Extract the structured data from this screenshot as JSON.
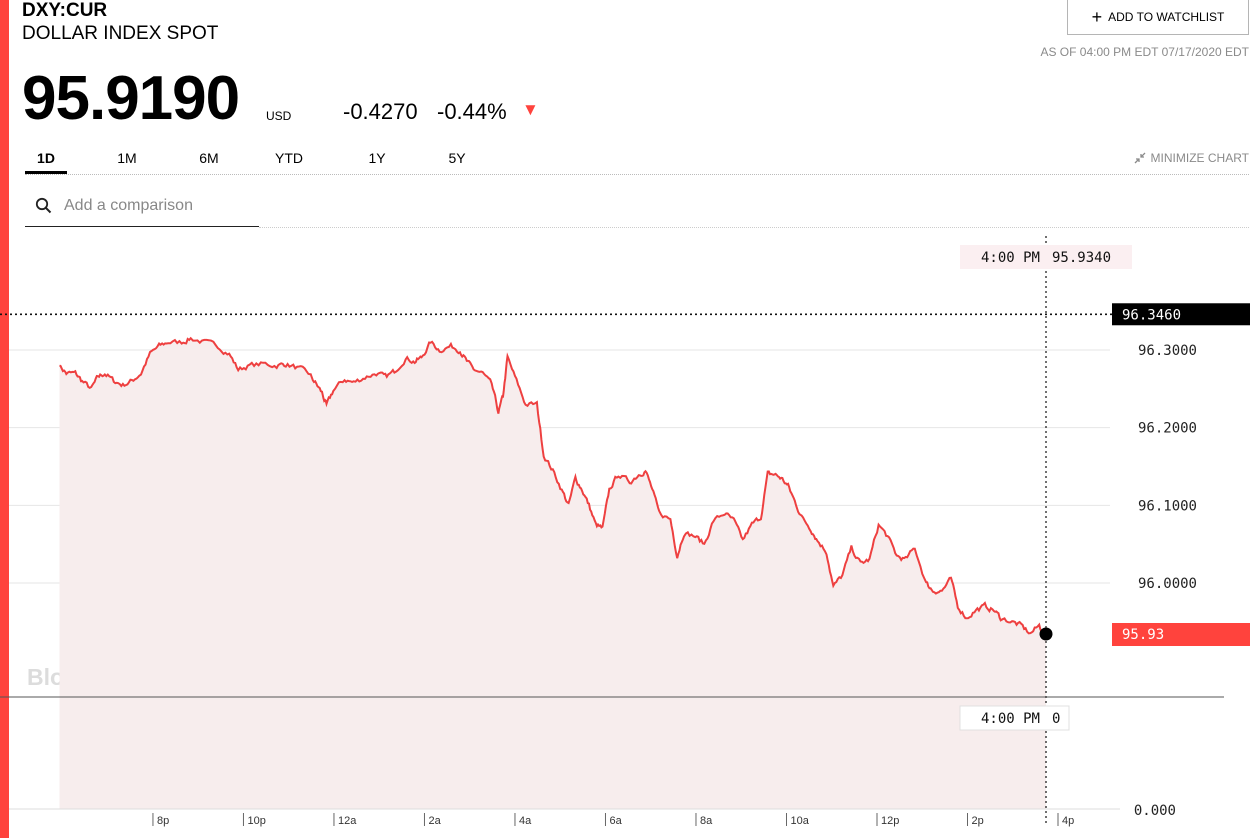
{
  "header": {
    "ticker": "DXY:CUR",
    "name": "DOLLAR INDEX SPOT",
    "price": "95.9190",
    "currency": "USD",
    "change": "-0.4270",
    "change_pct": "-0.44%",
    "watchlist_label": "ADD TO WATCHLIST",
    "as_of": "AS OF 04:00 PM EDT 07/17/2020 EDT"
  },
  "tabs": [
    {
      "label": "1D",
      "active": true
    },
    {
      "label": "1M",
      "active": false
    },
    {
      "label": "6M",
      "active": false
    },
    {
      "label": "YTD",
      "active": false
    },
    {
      "label": "1Y",
      "active": false
    },
    {
      "label": "5Y",
      "active": false
    }
  ],
  "minimize_label": "MINIMIZE CHART",
  "search": {
    "placeholder": "Add a comparison"
  },
  "watermark": "BloombergMarkets",
  "colors": {
    "accent": "#ff433d",
    "line": "#ee4040",
    "area": "#f7eded",
    "label_bg": "#fbeff1"
  },
  "chart_data": {
    "type": "area",
    "y_labels": [
      "96.3000",
      "96.2000",
      "96.1000",
      "96.0000"
    ],
    "y_label_values": [
      96.3,
      96.2,
      96.1,
      96.0
    ],
    "volume_label": "0.000",
    "x_ticks": [
      "8p",
      "10p",
      "12a",
      "2a",
      "4a",
      "6a",
      "8a",
      "10a",
      "12p",
      "2p",
      "4p"
    ],
    "x_tick_hours": [
      20,
      22,
      24,
      26,
      28,
      30,
      32,
      34,
      36,
      38,
      40
    ],
    "x_start_hour": 18.2,
    "y_range": [
      95.84,
      96.34
    ],
    "high_value": "96.3460",
    "last_value_label": "95.93",
    "last_value": 95.93,
    "crosshair_time": "4:00 PM",
    "crosshair_value": "95.9340",
    "crosshair_volume": "0",
    "crosshair_hour": 40,
    "anchors": [
      [
        18.2,
        96.28
      ],
      [
        18.35,
        96.27
      ],
      [
        18.55,
        96.27
      ],
      [
        18.7,
        96.26
      ],
      [
        18.9,
        96.25
      ],
      [
        19.05,
        96.265
      ],
      [
        19.2,
        96.27
      ],
      [
        19.4,
        96.26
      ],
      [
        19.6,
        96.255
      ],
      [
        19.8,
        96.26
      ],
      [
        20.0,
        96.27
      ],
      [
        20.2,
        96.295
      ],
      [
        20.4,
        96.305
      ],
      [
        20.6,
        96.31
      ],
      [
        20.9,
        96.31
      ],
      [
        21.1,
        96.315
      ],
      [
        21.4,
        96.31
      ],
      [
        21.7,
        96.305
      ],
      [
        21.95,
        96.295
      ],
      [
        22.15,
        96.275
      ],
      [
        22.4,
        96.28
      ],
      [
        22.7,
        96.282
      ],
      [
        23.0,
        96.28
      ],
      [
        23.2,
        96.282
      ],
      [
        23.45,
        96.277
      ],
      [
        23.7,
        96.27
      ],
      [
        23.85,
        96.258
      ],
      [
        24.0,
        96.245
      ],
      [
        24.1,
        96.228
      ],
      [
        24.25,
        96.248
      ],
      [
        24.5,
        96.262
      ],
      [
        24.7,
        96.258
      ],
      [
        24.95,
        96.265
      ],
      [
        25.2,
        96.27
      ],
      [
        25.4,
        96.265
      ],
      [
        25.6,
        96.272
      ],
      [
        25.85,
        96.29
      ],
      [
        26.05,
        96.285
      ],
      [
        26.2,
        96.29
      ],
      [
        26.4,
        96.31
      ],
      [
        26.6,
        96.3
      ],
      [
        26.85,
        96.305
      ],
      [
        27.05,
        96.3
      ],
      [
        27.2,
        96.285
      ],
      [
        27.35,
        96.275
      ],
      [
        27.55,
        96.27
      ],
      [
        27.75,
        96.255
      ],
      [
        27.9,
        96.22
      ],
      [
        28.0,
        96.24
      ],
      [
        28.1,
        96.29
      ],
      [
        28.3,
        96.26
      ],
      [
        28.5,
        96.23
      ],
      [
        28.75,
        96.23
      ],
      [
        28.9,
        96.165
      ],
      [
        29.1,
        96.145
      ],
      [
        29.3,
        96.12
      ],
      [
        29.45,
        96.1
      ],
      [
        29.6,
        96.135
      ],
      [
        29.75,
        96.12
      ],
      [
        29.9,
        96.1
      ],
      [
        30.05,
        96.075
      ],
      [
        30.2,
        96.07
      ],
      [
        30.35,
        96.12
      ],
      [
        30.55,
        96.14
      ],
      [
        30.8,
        96.13
      ],
      [
        31.0,
        96.14
      ],
      [
        31.15,
        96.145
      ],
      [
        31.3,
        96.12
      ],
      [
        31.45,
        96.09
      ],
      [
        31.7,
        96.082
      ],
      [
        31.85,
        96.035
      ],
      [
        32.0,
        96.065
      ],
      [
        32.25,
        96.06
      ],
      [
        32.45,
        96.05
      ],
      [
        32.65,
        96.08
      ],
      [
        32.9,
        96.09
      ],
      [
        33.1,
        96.08
      ],
      [
        33.3,
        96.055
      ],
      [
        33.5,
        96.075
      ],
      [
        33.7,
        96.085
      ],
      [
        33.85,
        96.14
      ],
      [
        34.0,
        96.14
      ],
      [
        34.15,
        96.135
      ],
      [
        34.3,
        96.125
      ],
      [
        34.45,
        96.105
      ],
      [
        34.6,
        96.085
      ],
      [
        34.8,
        96.07
      ],
      [
        34.95,
        96.055
      ],
      [
        35.15,
        96.04
      ],
      [
        35.3,
        95.995
      ],
      [
        35.5,
        96.01
      ],
      [
        35.7,
        96.045
      ],
      [
        35.9,
        96.025
      ],
      [
        36.1,
        96.03
      ],
      [
        36.3,
        96.075
      ],
      [
        36.5,
        96.06
      ],
      [
        36.7,
        96.035
      ],
      [
        36.9,
        96.03
      ],
      [
        37.1,
        96.045
      ],
      [
        37.35,
        96.0
      ],
      [
        37.5,
        95.99
      ],
      [
        37.7,
        95.99
      ],
      [
        37.9,
        96.005
      ],
      [
        38.05,
        95.97
      ],
      [
        38.25,
        95.955
      ],
      [
        38.45,
        95.965
      ],
      [
        38.65,
        95.97
      ],
      [
        38.85,
        95.965
      ],
      [
        39.0,
        95.955
      ],
      [
        39.25,
        95.95
      ],
      [
        39.45,
        95.945
      ],
      [
        39.65,
        95.935
      ],
      [
        39.85,
        95.945
      ],
      [
        40.0,
        95.93
      ]
    ]
  }
}
